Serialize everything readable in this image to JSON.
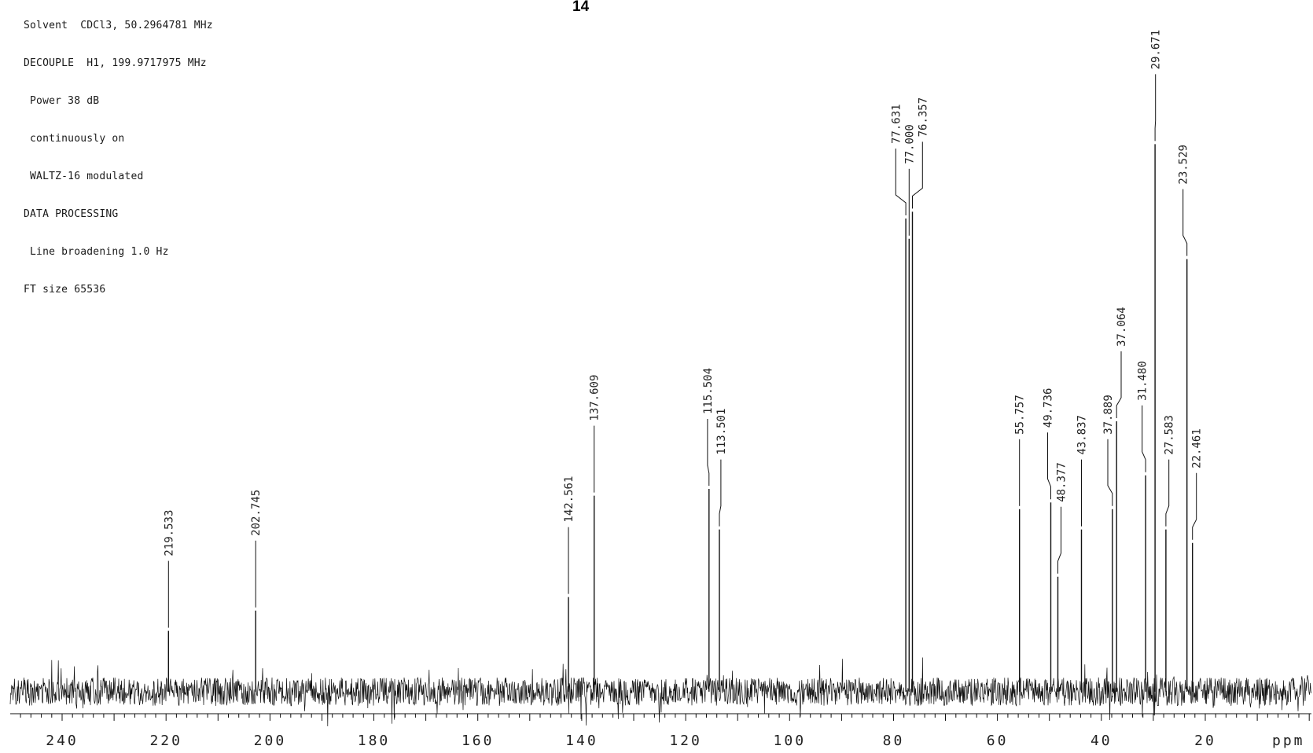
{
  "header": {
    "lines": [
      "Solvent  CDCl3, 50.2964781 MHz",
      "DECOUPLE  H1, 199.9717975 MHz",
      " Power 38 dB",
      " continuously on",
      " WALTZ-16 modulated",
      "DATA PROCESSING",
      " Line broadening 1.0 Hz",
      "FT size 65536"
    ],
    "compound_label": "14"
  },
  "chart_data": {
    "type": "line",
    "title": "14",
    "xlabel": "ppm",
    "ylabel": "",
    "xlim": [
      250,
      0
    ],
    "ylim": [
      0,
      1
    ],
    "x_reversed": true,
    "grid": false,
    "x_ticks": [
      240,
      220,
      200,
      180,
      160,
      140,
      120,
      100,
      80,
      60,
      40,
      20
    ],
    "x_tick_labels": [
      "240",
      "220",
      "200",
      "180",
      "160",
      "140",
      "120",
      "100",
      "80",
      "60",
      "40",
      "20"
    ],
    "peaks": [
      {
        "ppm": 219.533,
        "label": "219.533",
        "height": 0.09
      },
      {
        "ppm": 202.745,
        "label": "202.745",
        "height": 0.12
      },
      {
        "ppm": 142.561,
        "label": "142.561",
        "height": 0.14
      },
      {
        "ppm": 137.609,
        "label": "137.609",
        "height": 0.29
      },
      {
        "ppm": 115.504,
        "label": "115.504",
        "height": 0.3
      },
      {
        "ppm": 113.501,
        "label": "113.501",
        "height": 0.24
      },
      {
        "ppm": 77.631,
        "label": "77.631",
        "height": 0.7
      },
      {
        "ppm": 77.0,
        "label": "77.000",
        "height": 0.67
      },
      {
        "ppm": 76.357,
        "label": "76.357",
        "height": 0.71
      },
      {
        "ppm": 55.757,
        "label": "55.757",
        "height": 0.27
      },
      {
        "ppm": 49.736,
        "label": "49.736",
        "height": 0.28
      },
      {
        "ppm": 48.377,
        "label": "48.377",
        "height": 0.17
      },
      {
        "ppm": 43.837,
        "label": "43.837",
        "height": 0.24
      },
      {
        "ppm": 37.889,
        "label": "37.889",
        "height": 0.27
      },
      {
        "ppm": 37.064,
        "label": "37.064",
        "height": 0.4
      },
      {
        "ppm": 31.48,
        "label": "31.480",
        "height": 0.32
      },
      {
        "ppm": 29.671,
        "label": "29.671",
        "height": 0.81
      },
      {
        "ppm": 27.583,
        "label": "27.583",
        "height": 0.24
      },
      {
        "ppm": 23.529,
        "label": "23.529",
        "height": 0.64
      },
      {
        "ppm": 22.461,
        "label": "22.461",
        "height": 0.22
      }
    ]
  },
  "colors": {
    "spectrum": "#111111",
    "labels": "#222222",
    "background": "#ffffff"
  }
}
